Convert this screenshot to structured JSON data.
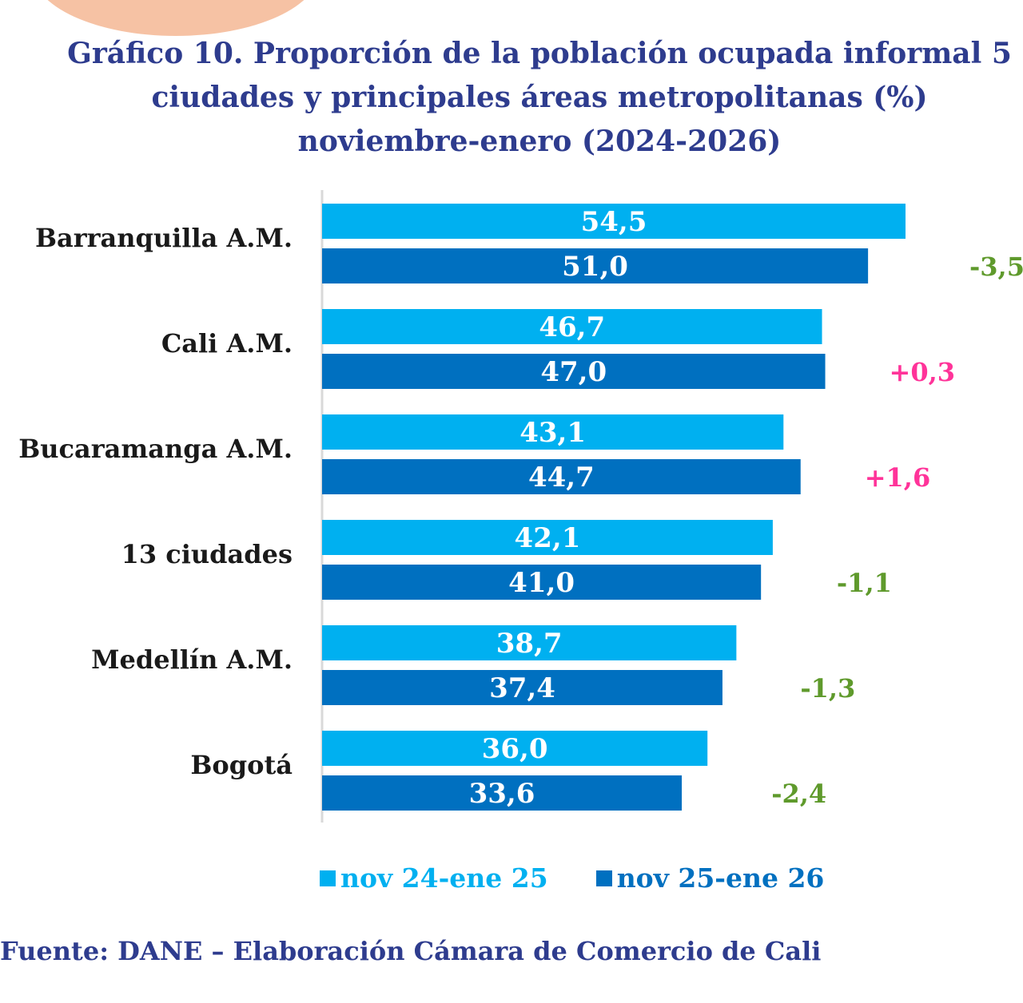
{
  "chart_data": {
    "type": "bar",
    "orientation": "horizontal",
    "title": "Gráfico 10. Proporción de la población ocupada informal 5 ciudades y principales áreas metropolitanas (%) noviembre-enero (2024-2026)",
    "title_lines": [
      "Gráfico 10. Proporción de la población ocupada informal 5",
      "ciudades y principales áreas metropolitanas (%)",
      "noviembre-enero (2024-2026)"
    ],
    "categories": [
      "Barranquilla A.M.",
      "Cali A.M.",
      "Bucaramanga A.M.",
      "13 ciudades",
      "Medellín A.M.",
      "Bogotá"
    ],
    "series": [
      {
        "name": "nov 24-ene 25",
        "color": "#00b0f0",
        "values": [
          54.5,
          46.7,
          43.1,
          42.1,
          38.7,
          36.0
        ],
        "labels": [
          "54,5",
          "46,7",
          "43,1",
          "42,1",
          "38,7",
          "36,0"
        ]
      },
      {
        "name": "nov 25-ene 26",
        "color": "#0070c0",
        "values": [
          51.0,
          47.0,
          44.7,
          41.0,
          37.4,
          33.6
        ],
        "labels": [
          "51,0",
          "47,0",
          "44,7",
          "41,0",
          "37,4",
          "33,6"
        ]
      }
    ],
    "annotations": [
      {
        "text": "-3,5",
        "color": "#5f9a2c"
      },
      {
        "text": "+0,3",
        "color": "#ff3399"
      },
      {
        "text": "+1,6",
        "color": "#ff3399"
      },
      {
        "text": "-1,1",
        "color": "#5f9a2c"
      },
      {
        "text": "-1,3",
        "color": "#5f9a2c"
      },
      {
        "text": "-2,4",
        "color": "#5f9a2c"
      }
    ],
    "xlim": [
      0,
      60
    ],
    "grid": false,
    "legend_position": "bottom",
    "source": "Fuente: DANE – Elaboración Cámara de Comercio de Cali"
  }
}
